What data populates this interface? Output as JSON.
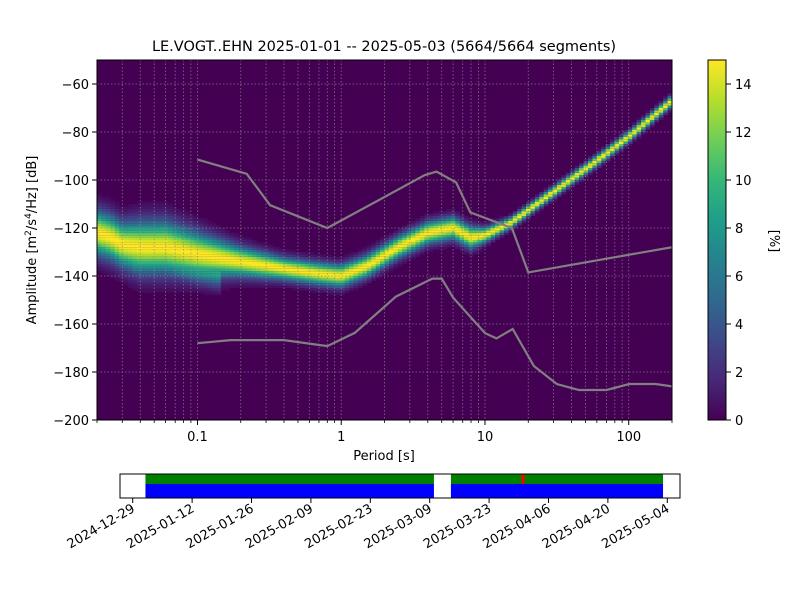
{
  "chart_data": [
    {
      "type": "heatmap",
      "title": "LE.VOGT..EHN   2025-01-01 -- 2025-05-03  (5664/5664 segments)",
      "xlabel": "Period [s]",
      "ylabel_parts": {
        "pre": "Amplitude [m",
        "exp1": "2",
        "mid": "/s",
        "exp2": "4",
        "post": "/Hz] [dB]"
      },
      "x_scale": "log",
      "xlim": [
        0.02,
        200
      ],
      "ylim": [
        -200,
        -50
      ],
      "x_ticks": [
        {
          "v": 0.1,
          "label": "0.1"
        },
        {
          "v": 1,
          "label": "1"
        },
        {
          "v": 10,
          "label": "10"
        },
        {
          "v": 100,
          "label": "100"
        }
      ],
      "y_ticks": [
        {
          "v": -60,
          "label": "−60"
        },
        {
          "v": -80,
          "label": "−80"
        },
        {
          "v": -100,
          "label": "−100"
        },
        {
          "v": -120,
          "label": "−120"
        },
        {
          "v": -140,
          "label": "−140"
        },
        {
          "v": -160,
          "label": "−160"
        },
        {
          "v": -180,
          "label": "−180"
        },
        {
          "v": -200,
          "label": "−200"
        }
      ],
      "grid": true,
      "colorbar": {
        "label": "[%]",
        "min": 0,
        "max": 15,
        "ticks": [
          0,
          2,
          4,
          6,
          8,
          10,
          12,
          14
        ]
      },
      "density_ridge": [
        {
          "period": 0.02,
          "db": -122,
          "width": 6
        },
        {
          "period": 0.025,
          "db": -124,
          "width": 6
        },
        {
          "period": 0.03,
          "db": -127,
          "width": 6
        },
        {
          "period": 0.04,
          "db": -128,
          "width": 7
        },
        {
          "period": 0.06,
          "db": -128,
          "width": 7
        },
        {
          "period": 0.1,
          "db": -131,
          "width": 6
        },
        {
          "period": 0.2,
          "db": -134,
          "width": 4
        },
        {
          "period": 0.4,
          "db": -137,
          "width": 3
        },
        {
          "period": 0.7,
          "db": -139,
          "width": 3
        },
        {
          "period": 1.0,
          "db": -140,
          "width": 3
        },
        {
          "period": 1.5,
          "db": -136,
          "width": 3
        },
        {
          "period": 2.5,
          "db": -128,
          "width": 3
        },
        {
          "period": 4.0,
          "db": -122,
          "width": 3
        },
        {
          "period": 6.0,
          "db": -120,
          "width": 3
        },
        {
          "period": 8.0,
          "db": -124,
          "width": 3
        },
        {
          "period": 10.0,
          "db": -123,
          "width": 2
        },
        {
          "period": 15.0,
          "db": -118,
          "width": 1.5
        },
        {
          "period": 30.0,
          "db": -105,
          "width": 1.5
        },
        {
          "period": 60.0,
          "db": -92,
          "width": 1.5
        },
        {
          "period": 100.0,
          "db": -82,
          "width": 1.5
        },
        {
          "period": 200.0,
          "db": -67,
          "width": 1.5
        }
      ],
      "nhnm": [
        [
          0.1,
          -91.5
        ],
        [
          0.22,
          -97.4
        ],
        [
          0.32,
          -110.5
        ],
        [
          0.8,
          -120
        ],
        [
          3.8,
          -98
        ],
        [
          4.6,
          -96.5
        ],
        [
          6.3,
          -101
        ],
        [
          7.9,
          -113.5
        ],
        [
          15.4,
          -120
        ],
        [
          20,
          -138.5
        ],
        [
          200,
          -128
        ]
      ],
      "nlnm": [
        [
          0.1,
          -168
        ],
        [
          0.17,
          -166.7
        ],
        [
          0.4,
          -166.7
        ],
        [
          0.8,
          -169.2
        ],
        [
          1.24,
          -163.7
        ],
        [
          2.4,
          -148.6
        ],
        [
          4.3,
          -141.1
        ],
        [
          5,
          -141.1
        ],
        [
          6,
          -149
        ],
        [
          10,
          -163.8
        ],
        [
          12,
          -166
        ],
        [
          15.6,
          -162.1
        ],
        [
          21.9,
          -177.5
        ],
        [
          31.6,
          -185
        ],
        [
          45,
          -187.5
        ],
        [
          70,
          -187.5
        ],
        [
          101,
          -185
        ],
        [
          154,
          -185
        ],
        [
          200,
          -186
        ]
      ]
    },
    {
      "type": "timeline",
      "x_ticks": [
        "2024-12-29",
        "2025-01-12",
        "2025-01-26",
        "2025-02-09",
        "2025-02-23",
        "2025-03-09",
        "2025-03-23",
        "2025-04-06",
        "2025-04-20",
        "2025-05-04"
      ],
      "x_range": [
        "2024-12-26",
        "2025-05-07"
      ],
      "coverage_segments": [
        [
          "2025-01-01",
          "2025-03-10"
        ],
        [
          "2025-03-14",
          "2025-05-03"
        ]
      ],
      "gap_marker": "2025-03-31",
      "colors": {
        "used": "#0000ff",
        "available": "#008000",
        "gap": "#ff0000"
      }
    }
  ],
  "colors": {
    "background": "#440154",
    "noise_model": "#808080",
    "viridis": [
      "#440154",
      "#482878",
      "#3e4989",
      "#31688e",
      "#26828e",
      "#1f9e89",
      "#35b779",
      "#6ece58",
      "#b5de2b",
      "#fde725"
    ]
  }
}
